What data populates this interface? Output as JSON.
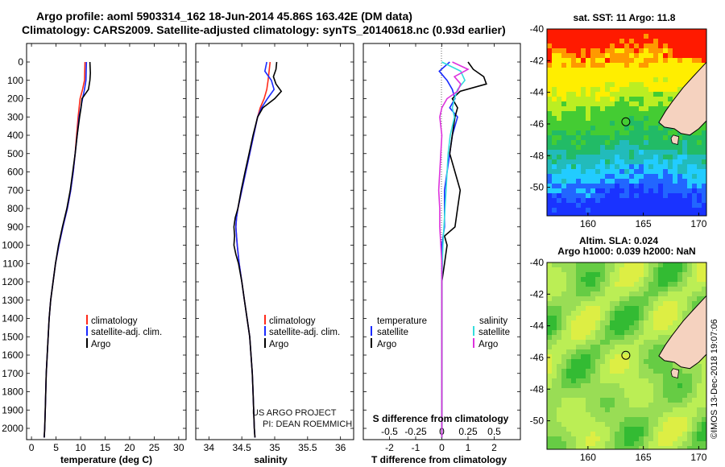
{
  "titles": {
    "line1": "Argo profile: aoml 5903314_162 18-Jun-2014 45.86S 163.42E (DM data)",
    "line2": "Climatology: CARS2009. Satellite-adjusted climatology: synTS_20140618.nc (0.93d earlier)"
  },
  "credit": "©IMOS 13-Dec-2018 19:07:06",
  "project": {
    "line1": "US ARGO PROJECT",
    "line2": "PI: DEAN ROEMMICH"
  },
  "colors": {
    "argo": "#000000",
    "climatology": "#ff2a1a",
    "satellite": "#1a2aff",
    "s_sat": "#33dddd",
    "s_argo": "#dd33dd"
  },
  "chart_data": [
    {
      "type": "line",
      "xlabel": "temperature (deg C)",
      "xticks": [
        "0",
        "5",
        "10",
        "15",
        "20",
        "25",
        "30"
      ],
      "xlim": [
        -1,
        31.5
      ],
      "ylim": [
        2070,
        0
      ],
      "yticks": [
        "0",
        "100",
        "200",
        "300",
        "400",
        "500",
        "600",
        "700",
        "800",
        "900",
        "1000",
        "1100",
        "1200",
        "1300",
        "1400",
        "1500",
        "1600",
        "1700",
        "1800",
        "1900",
        "2000"
      ],
      "legend": [
        "climatology",
        "satellite-adj. clim.",
        "Argo"
      ],
      "series": [
        {
          "name": "climatology",
          "color": "#ff2a1a",
          "depth": [
            0,
            100,
            150,
            200,
            300,
            400,
            500,
            600,
            700,
            800,
            900,
            1000,
            1100,
            1200,
            1300,
            1400,
            1500,
            1600,
            1700,
            1800,
            1900,
            2000,
            2050
          ],
          "values": [
            10.9,
            10.8,
            10.4,
            9.9,
            9.5,
            9.2,
            8.9,
            8.5,
            8.0,
            7.3,
            6.4,
            5.6,
            4.9,
            4.4,
            3.9,
            3.6,
            3.4,
            3.2,
            3.0,
            2.9,
            2.8,
            2.7,
            2.6
          ]
        },
        {
          "name": "satellite-adj. clim.",
          "color": "#1a2aff",
          "depth": [
            0,
            100,
            150,
            200,
            300,
            400,
            500,
            600,
            700,
            800,
            900,
            1000,
            1100,
            1200,
            1300,
            1400,
            1500,
            1600,
            1700,
            1800,
            1900,
            2000,
            2050
          ],
          "values": [
            11.2,
            11.1,
            10.8,
            10.4,
            9.7,
            9.3,
            8.9,
            8.5,
            8.0,
            7.3,
            6.4,
            5.6,
            4.9,
            4.4,
            3.9,
            3.6,
            3.4,
            3.2,
            3.0,
            2.9,
            2.8,
            2.7,
            2.6
          ]
        },
        {
          "name": "Argo",
          "color": "#000000",
          "depth": [
            0,
            60,
            100,
            150,
            200,
            250,
            300,
            400,
            500,
            600,
            700,
            800,
            900,
            1000,
            1100,
            1200,
            1300,
            1400,
            1500,
            1600,
            1700,
            1800,
            1900,
            2000,
            2050
          ],
          "values": [
            11.9,
            12.0,
            11.9,
            11.6,
            10.3,
            10.1,
            9.8,
            9.3,
            8.9,
            8.4,
            7.9,
            7.2,
            6.3,
            5.5,
            4.9,
            4.4,
            3.9,
            3.6,
            3.4,
            3.2,
            3.0,
            2.9,
            2.8,
            2.7,
            2.6
          ]
        }
      ]
    },
    {
      "type": "line",
      "xlabel": "salinity",
      "xticks": [
        "34",
        "34.5",
        "35",
        "35.5",
        "36"
      ],
      "xlim": [
        33.8,
        36.2
      ],
      "ylim": [
        2070,
        0
      ],
      "legend": [
        "climatology",
        "satellite-adj. clim.",
        "Argo"
      ],
      "series": [
        {
          "name": "climatology",
          "color": "#ff2a1a",
          "depth": [
            0,
            100,
            150,
            200,
            250,
            300,
            400,
            500,
            600,
            700,
            800,
            850,
            900,
            950,
            1000,
            1100,
            1200,
            1300,
            1400,
            1500,
            1600,
            1700,
            1800,
            1900,
            2000,
            2050
          ],
          "values": [
            34.93,
            34.9,
            34.88,
            34.84,
            34.78,
            34.74,
            34.68,
            34.62,
            34.56,
            34.5,
            34.44,
            34.42,
            34.41,
            34.42,
            34.43,
            34.46,
            34.5,
            34.54,
            34.58,
            34.62,
            34.64,
            34.66,
            34.67,
            34.68,
            34.69,
            34.7
          ]
        },
        {
          "name": "satellite-adj. clim.",
          "color": "#1a2aff",
          "depth": [
            0,
            50,
            100,
            150,
            200,
            250,
            300,
            400,
            500,
            600,
            700,
            800,
            850,
            900,
            950,
            1000,
            1100,
            1200,
            1300,
            1400,
            1500,
            1600,
            1700,
            1800,
            1900,
            2000,
            2050
          ],
          "values": [
            34.88,
            34.85,
            34.95,
            34.99,
            34.89,
            34.8,
            34.74,
            34.68,
            34.62,
            34.56,
            34.5,
            34.44,
            34.42,
            34.41,
            34.42,
            34.43,
            34.46,
            34.5,
            34.54,
            34.58,
            34.62,
            34.64,
            34.66,
            34.67,
            34.68,
            34.69,
            34.7
          ]
        },
        {
          "name": "Argo",
          "color": "#000000",
          "depth": [
            0,
            40,
            80,
            120,
            160,
            200,
            250,
            300,
            400,
            500,
            600,
            700,
            800,
            850,
            900,
            950,
            1000,
            1050,
            1100,
            1200,
            1300,
            1400,
            1500,
            1600,
            1700,
            1800,
            1900,
            2000,
            2050
          ],
          "values": [
            35.03,
            35.02,
            34.98,
            35.02,
            35.1,
            35.0,
            34.82,
            34.74,
            34.67,
            34.61,
            34.55,
            34.49,
            34.44,
            34.4,
            34.38,
            34.39,
            34.38,
            34.41,
            34.45,
            34.5,
            34.54,
            34.58,
            34.62,
            34.64,
            34.66,
            34.67,
            34.68,
            34.69,
            34.7
          ]
        }
      ]
    },
    {
      "type": "line",
      "xlabel": "T difference from climatology",
      "xlabel2": "S difference from climatology",
      "xticks": [
        "-2",
        "-1",
        "0",
        "1",
        "2"
      ],
      "xticks2": [
        "-0.5",
        "-0.25",
        "0",
        "0.25",
        "0.5"
      ],
      "xlim": [
        -3,
        3
      ],
      "ylim": [
        2070,
        0
      ],
      "legend_temperature": {
        "title": "temperature",
        "items": [
          "satellite",
          "Argo"
        ]
      },
      "legend_salinity": {
        "title": "salinity",
        "items": [
          "satellite",
          "Argo"
        ]
      },
      "series": [
        {
          "name": "satellite",
          "group": "temperature",
          "color": "#1a2aff",
          "depth": [
            0,
            50,
            100,
            150,
            200,
            250,
            300,
            400,
            500,
            600,
            700,
            800,
            900,
            1000,
            1200,
            1400,
            1600,
            1800,
            2000,
            2050
          ],
          "values": [
            0.3,
            -0.1,
            0.2,
            0.4,
            0.5,
            0.3,
            0.6,
            0.4,
            0.3,
            0.2,
            0.1,
            0.1,
            0.1,
            0.0,
            0.0,
            0.0,
            0.0,
            0.0,
            0.0,
            0.0
          ]
        },
        {
          "name": "Argo",
          "group": "temperature",
          "color": "#000000",
          "depth": [
            0,
            40,
            80,
            120,
            160,
            200,
            250,
            300,
            400,
            500,
            600,
            700,
            800,
            900,
            950,
            1000,
            1100,
            1200,
            1400,
            1600,
            1800,
            2000,
            2050
          ],
          "values": [
            1.0,
            1.2,
            1.6,
            1.7,
            0.7,
            0.4,
            0.6,
            0.5,
            0.4,
            0.3,
            0.5,
            0.7,
            0.6,
            0.5,
            0.1,
            0.2,
            0.1,
            0.0,
            0.0,
            0.0,
            0.0,
            0.0,
            0.0
          ]
        },
        {
          "name": "satellite",
          "group": "salinity",
          "color": "#33dddd",
          "depth": [
            0,
            50,
            100,
            150,
            200,
            250,
            300,
            400,
            500,
            600,
            700,
            800,
            900,
            1000,
            1200,
            1400,
            1600,
            1800,
            2000,
            2050
          ],
          "values": [
            0.0,
            0.18,
            0.22,
            0.15,
            0.12,
            0.1,
            0.12,
            0.08,
            0.06,
            0.05,
            0.04,
            0.03,
            0.02,
            0.01,
            0.0,
            0.0,
            0.0,
            0.0,
            0.0,
            0.0
          ]
        },
        {
          "name": "Argo",
          "group": "salinity",
          "color": "#dd33dd",
          "depth": [
            0,
            40,
            80,
            120,
            160,
            200,
            250,
            300,
            400,
            500,
            600,
            700,
            800,
            900,
            1000,
            1100,
            1200,
            1400,
            1600,
            1800,
            2000,
            2050
          ],
          "values": [
            0.1,
            0.25,
            0.12,
            0.18,
            0.15,
            0.05,
            0.0,
            -0.02,
            0.0,
            -0.01,
            -0.02,
            -0.03,
            -0.02,
            -0.02,
            -0.01,
            0.0,
            0.0,
            0.0,
            0.0,
            0.0,
            0.0,
            0.0
          ]
        }
      ]
    },
    {
      "type": "heatmap",
      "title": "sat. SST: 11 Argo: 11.8",
      "xticks": [
        "160",
        "165",
        "170"
      ],
      "yticks": [
        "-40",
        "-42",
        "-44",
        "-46",
        "-48",
        "-50"
      ],
      "xlim": [
        156.3,
        170.7
      ],
      "ylim": [
        -51.8,
        -40
      ],
      "marker": {
        "lon": 163.42,
        "lat": -45.86
      }
    },
    {
      "type": "heatmap",
      "title": "Altim. SLA: 0.024",
      "subtitle": "Argo h1000: 0.039 h2000: NaN",
      "xticks": [
        "160",
        "165",
        "170"
      ],
      "yticks": [
        "-40",
        "-42",
        "-44",
        "-46",
        "-48",
        "-50"
      ],
      "xlim": [
        156.3,
        170.7
      ],
      "ylim": [
        -51.8,
        -40
      ],
      "marker": {
        "lon": 163.42,
        "lat": -45.86
      }
    }
  ]
}
